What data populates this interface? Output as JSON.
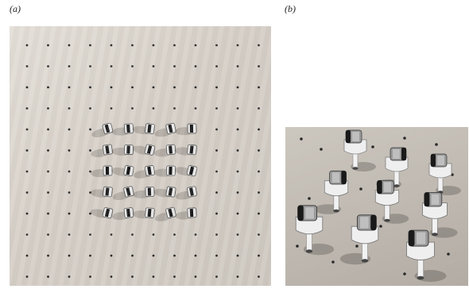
{
  "panels": {
    "a": {
      "label": "(a)"
    },
    "b": {
      "label": "(b)"
    }
  },
  "colors": {
    "board": "#d9d3cb",
    "hole": "#2a2a2a",
    "device_body": "#e8e8e8",
    "device_dark": "#1a1a1a"
  }
}
